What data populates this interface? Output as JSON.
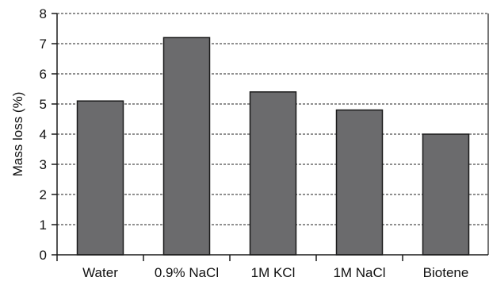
{
  "chart_data": {
    "type": "bar",
    "title": "",
    "xlabel": "",
    "ylabel": "Mass loss (%)",
    "categories": [
      "Water",
      "0.9% NaCl",
      "1M KCl",
      "1M NaCl",
      "Biotene"
    ],
    "values": [
      5.1,
      7.2,
      5.4,
      4.8,
      4.0
    ],
    "ylim": [
      0,
      8
    ],
    "yticks": [
      "0",
      "1",
      "2",
      "3",
      "4",
      "5",
      "6",
      "7",
      "8"
    ],
    "grid": "horizontal dashed",
    "legend": "none",
    "colors": {
      "bar_fill": "#6b6b6d",
      "bar_stroke": "#1a1a1a",
      "axis": "#1a1a1a",
      "grid": "#222222"
    }
  }
}
